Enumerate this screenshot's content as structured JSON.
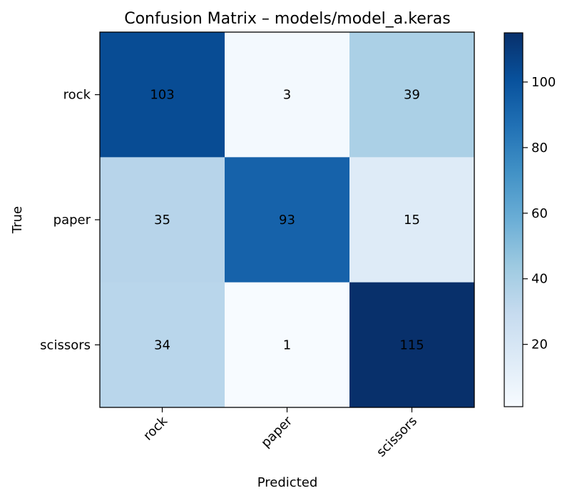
{
  "chart_data": {
    "type": "heatmap",
    "title": "Confusion Matrix – models/model_a.keras",
    "xlabel": "Predicted",
    "ylabel": "True",
    "x_categories": [
      "rock",
      "paper",
      "scissors"
    ],
    "y_categories": [
      "rock",
      "paper",
      "scissors"
    ],
    "values": [
      [
        103,
        3,
        39
      ],
      [
        35,
        93,
        15
      ],
      [
        34,
        1,
        115
      ]
    ],
    "colormap": "Blues",
    "color_range": [
      1,
      115
    ],
    "colorbar_ticks": [
      20,
      40,
      60,
      80,
      100
    ],
    "grid": false
  }
}
